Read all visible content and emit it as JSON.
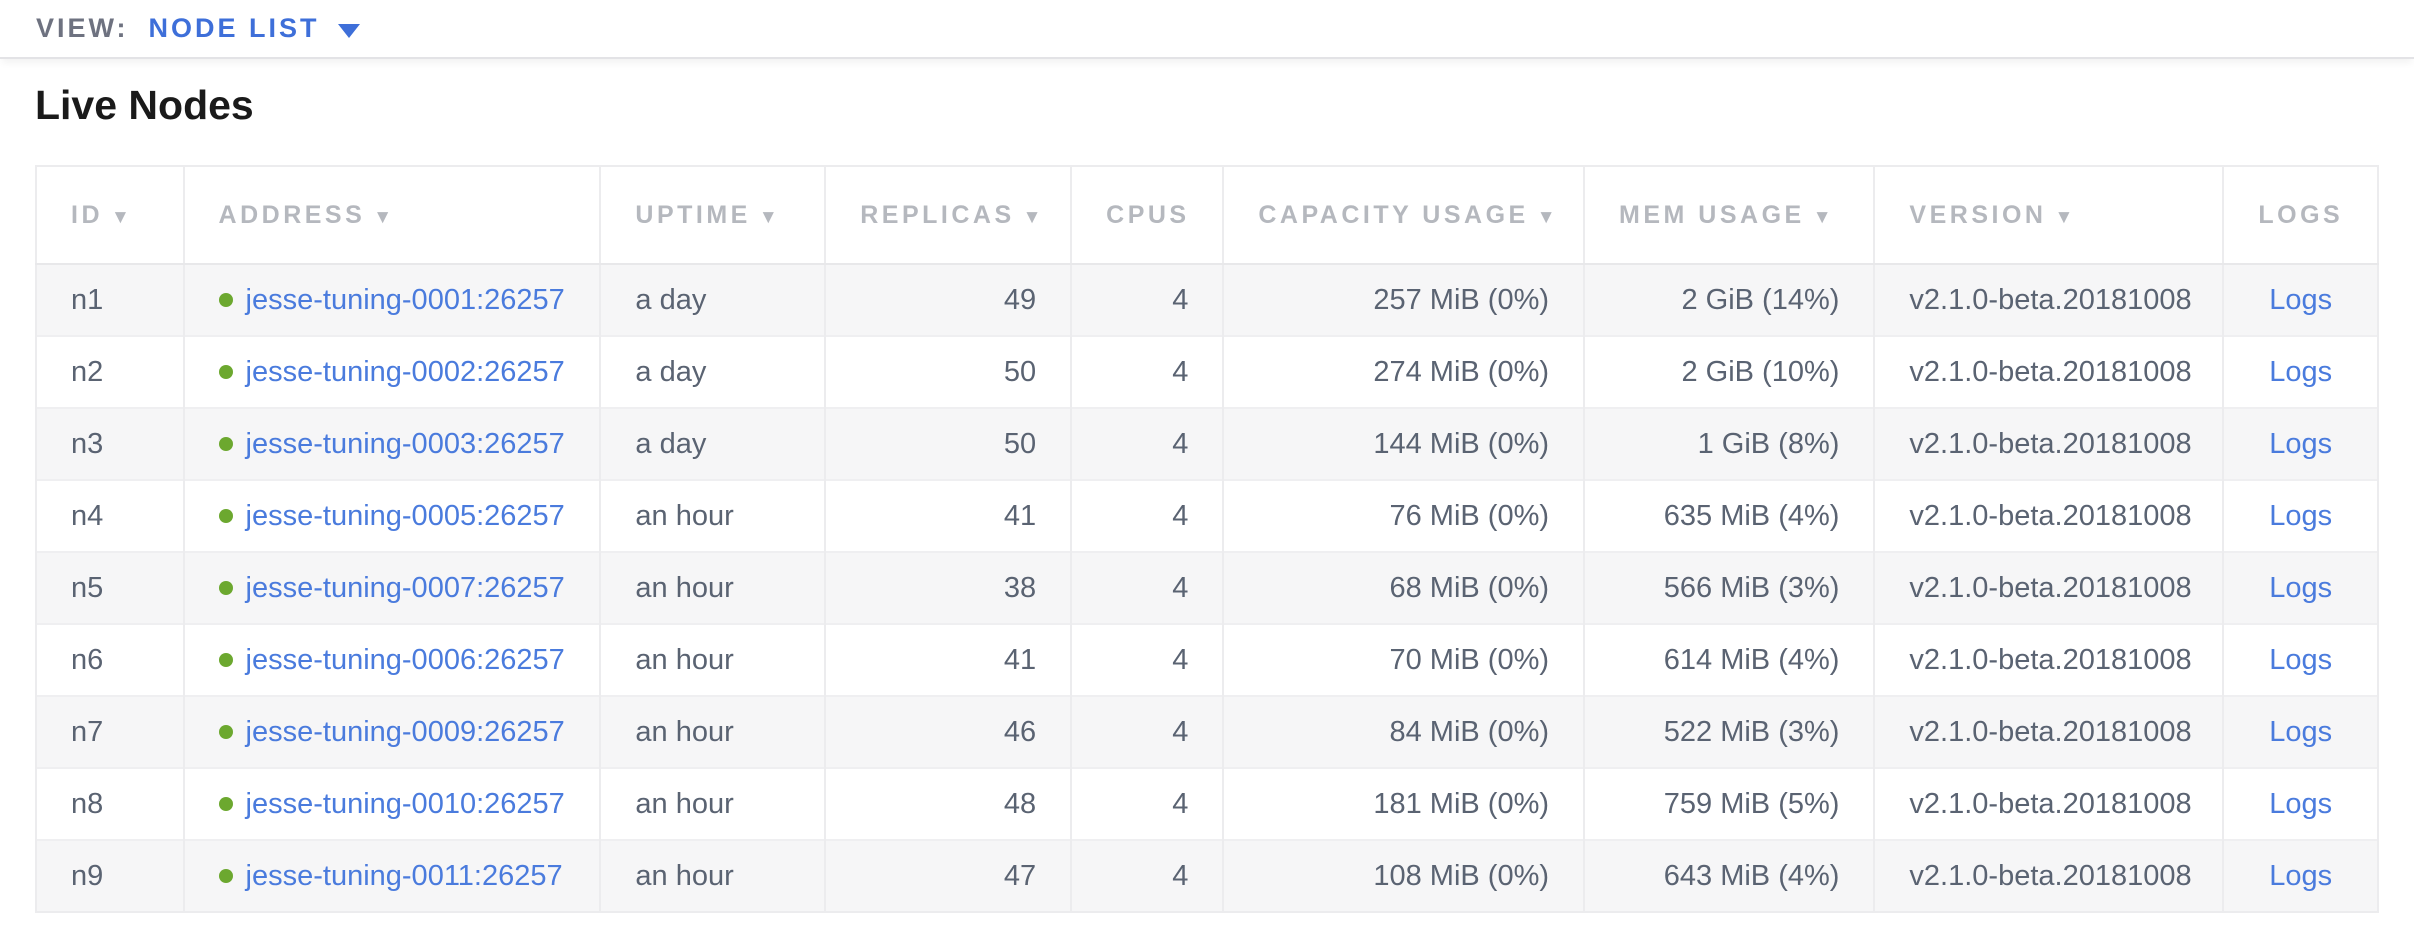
{
  "view_bar": {
    "label": "VIEW:",
    "selected": "NODE LIST"
  },
  "page": {
    "title": "Live Nodes"
  },
  "icons": {
    "sort_indicator": "▼",
    "live_status_dot": "green-circle"
  },
  "colors": {
    "link_blue": "#4a7bdd",
    "view_selector_blue": "#3e6fd9",
    "live_dot_green": "#6ca82f",
    "header_gray": "#b5b8be",
    "body_text": "#5a6372",
    "row_stripe": "#f6f6f7"
  },
  "table": {
    "columns": [
      {
        "key": "id",
        "label": "ID",
        "sortable": true,
        "align": "left",
        "type": "text"
      },
      {
        "key": "address",
        "label": "ADDRESS",
        "sortable": true,
        "align": "left",
        "type": "address"
      },
      {
        "key": "uptime",
        "label": "UPTIME",
        "sortable": true,
        "align": "left",
        "type": "text"
      },
      {
        "key": "replicas",
        "label": "REPLICAS",
        "sortable": true,
        "align": "right",
        "type": "text"
      },
      {
        "key": "cpus",
        "label": "CPUS",
        "sortable": false,
        "align": "right",
        "type": "text"
      },
      {
        "key": "capacity_usage",
        "label": "CAPACITY USAGE",
        "sortable": true,
        "align": "right",
        "type": "text"
      },
      {
        "key": "mem_usage",
        "label": "MEM USAGE",
        "sortable": true,
        "align": "right",
        "type": "text"
      },
      {
        "key": "version",
        "label": "VERSION",
        "sortable": true,
        "align": "left",
        "type": "text"
      },
      {
        "key": "logs",
        "label": "LOGS",
        "sortable": false,
        "align": "center",
        "type": "link"
      }
    ],
    "rows": [
      {
        "id": "n1",
        "address": "jesse-tuning-0001:26257",
        "uptime": "a day",
        "replicas": "49",
        "cpus": "4",
        "capacity_usage": "257 MiB (0%)",
        "mem_usage": "2 GiB (14%)",
        "version": "v2.1.0-beta.20181008",
        "logs": "Logs"
      },
      {
        "id": "n2",
        "address": "jesse-tuning-0002:26257",
        "uptime": "a day",
        "replicas": "50",
        "cpus": "4",
        "capacity_usage": "274 MiB (0%)",
        "mem_usage": "2 GiB (10%)",
        "version": "v2.1.0-beta.20181008",
        "logs": "Logs"
      },
      {
        "id": "n3",
        "address": "jesse-tuning-0003:26257",
        "uptime": "a day",
        "replicas": "50",
        "cpus": "4",
        "capacity_usage": "144 MiB (0%)",
        "mem_usage": "1 GiB (8%)",
        "version": "v2.1.0-beta.20181008",
        "logs": "Logs"
      },
      {
        "id": "n4",
        "address": "jesse-tuning-0005:26257",
        "uptime": "an hour",
        "replicas": "41",
        "cpus": "4",
        "capacity_usage": "76 MiB (0%)",
        "mem_usage": "635 MiB (4%)",
        "version": "v2.1.0-beta.20181008",
        "logs": "Logs"
      },
      {
        "id": "n5",
        "address": "jesse-tuning-0007:26257",
        "uptime": "an hour",
        "replicas": "38",
        "cpus": "4",
        "capacity_usage": "68 MiB (0%)",
        "mem_usage": "566 MiB (3%)",
        "version": "v2.1.0-beta.20181008",
        "logs": "Logs"
      },
      {
        "id": "n6",
        "address": "jesse-tuning-0006:26257",
        "uptime": "an hour",
        "replicas": "41",
        "cpus": "4",
        "capacity_usage": "70 MiB (0%)",
        "mem_usage": "614 MiB (4%)",
        "version": "v2.1.0-beta.20181008",
        "logs": "Logs"
      },
      {
        "id": "n7",
        "address": "jesse-tuning-0009:26257",
        "uptime": "an hour",
        "replicas": "46",
        "cpus": "4",
        "capacity_usage": "84 MiB (0%)",
        "mem_usage": "522 MiB (3%)",
        "version": "v2.1.0-beta.20181008",
        "logs": "Logs"
      },
      {
        "id": "n8",
        "address": "jesse-tuning-0010:26257",
        "uptime": "an hour",
        "replicas": "48",
        "cpus": "4",
        "capacity_usage": "181 MiB (0%)",
        "mem_usage": "759 MiB (5%)",
        "version": "v2.1.0-beta.20181008",
        "logs": "Logs"
      },
      {
        "id": "n9",
        "address": "jesse-tuning-0011:26257",
        "uptime": "an hour",
        "replicas": "47",
        "cpus": "4",
        "capacity_usage": "108 MiB (0%)",
        "mem_usage": "643 MiB (4%)",
        "version": "v2.1.0-beta.20181008",
        "logs": "Logs"
      }
    ]
  }
}
